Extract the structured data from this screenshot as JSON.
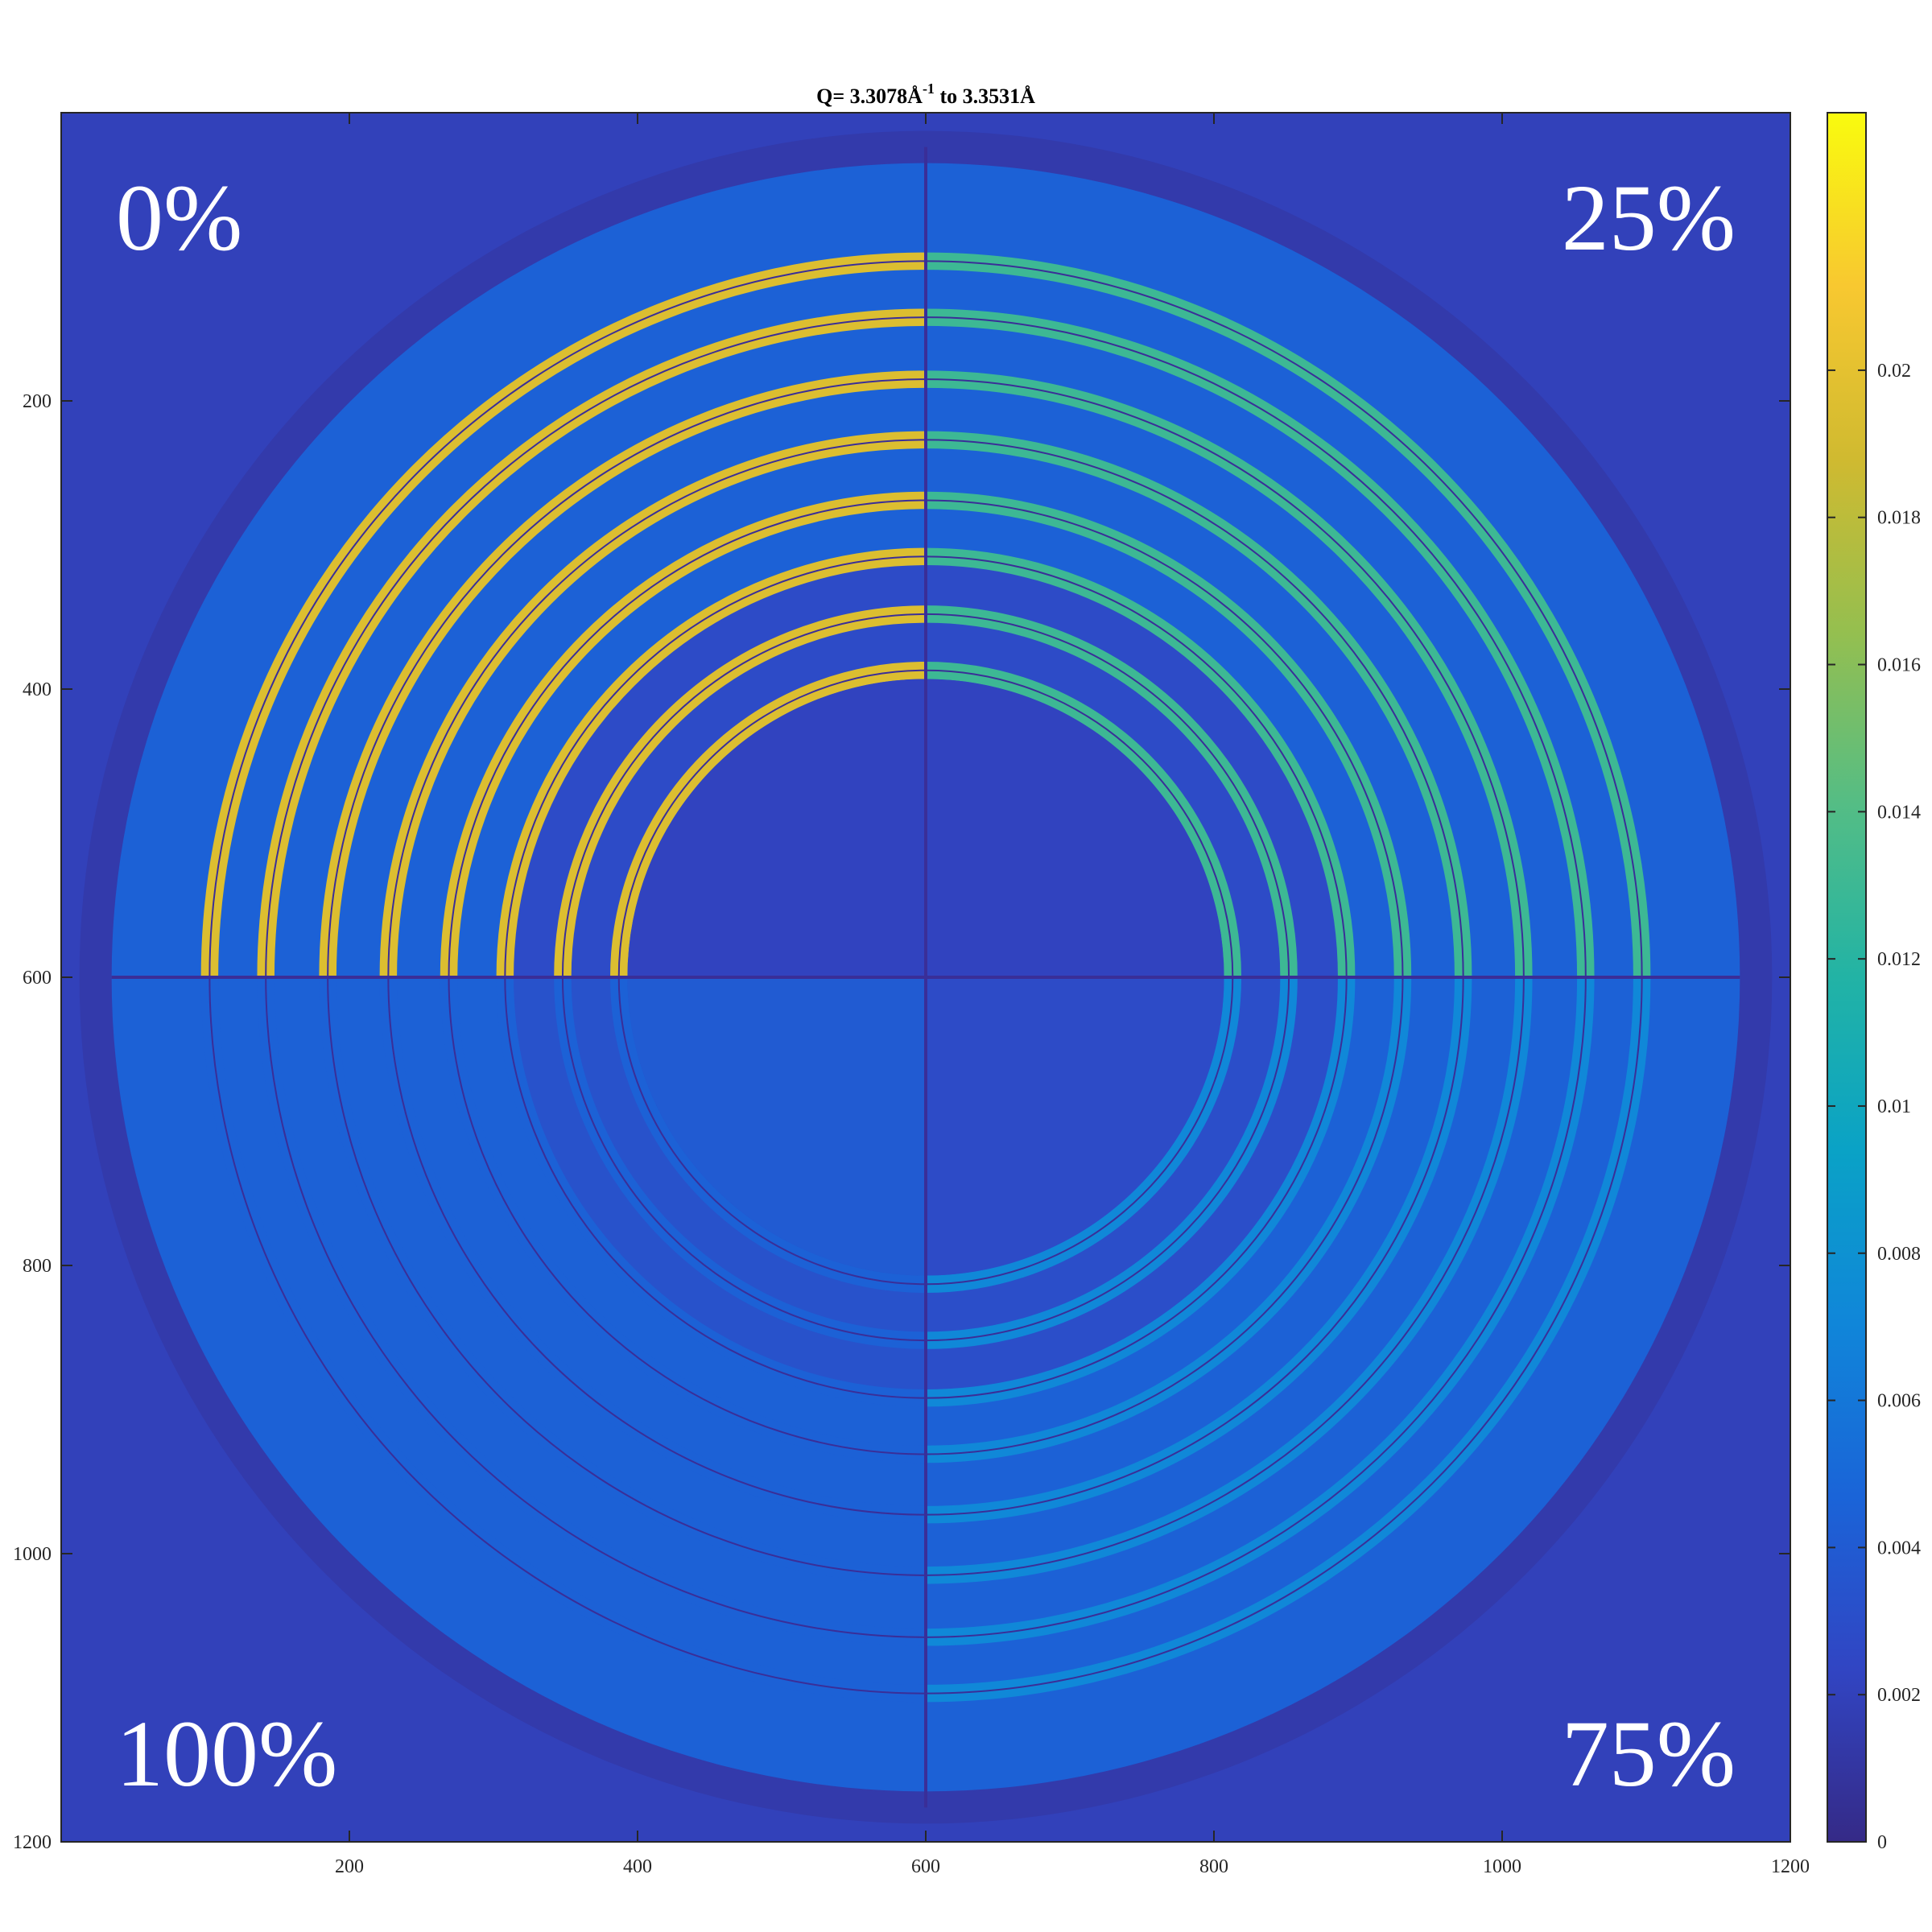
{
  "chart_data": {
    "type": "heatmap",
    "title": {
      "main": "Q= 3.3078Å",
      "superscript": "-1",
      "suffix": "  to 3.3531Å"
    },
    "xlim": [
      0,
      1200
    ],
    "ylim": [
      1200,
      0
    ],
    "x_ticks": [
      200,
      400,
      600,
      800,
      1000,
      1200
    ],
    "y_ticks": [
      200,
      400,
      600,
      800,
      1000,
      1200
    ],
    "x_tick_labels": [
      "200",
      "400",
      "600",
      "800",
      "1000",
      "1200"
    ],
    "y_tick_labels": [
      "200",
      "400",
      "600",
      "800",
      "1000",
      "1200"
    ],
    "colorbar": {
      "min": 0,
      "max": 0.0235,
      "ticks": [
        0,
        0.002,
        0.004,
        0.006,
        0.008,
        0.01,
        0.012,
        0.014,
        0.016,
        0.018,
        0.02
      ],
      "tick_labels": [
        "0",
        "0.002",
        "0.004",
        "0.006",
        "0.008",
        "0.01",
        "0.012",
        "0.014",
        "0.016",
        "0.018",
        "0.02"
      ],
      "colormap": "parula"
    },
    "quadrant_labels": [
      {
        "text": "0%",
        "position": "top-left"
      },
      {
        "text": "25%",
        "position": "top-right"
      },
      {
        "text": "100%",
        "position": "bottom-left"
      },
      {
        "text": "75%",
        "position": "bottom-right"
      }
    ],
    "center": [
      600,
      600
    ],
    "outer_disk_radius": 565,
    "quadrants": {
      "top_left": {
        "ring_value": 0.0195,
        "gap_value": 0.0028,
        "fill_value": 0.0022
      },
      "top_right": {
        "ring_value": 0.013,
        "gap_value": 0.0028,
        "fill_value": 0.0022
      },
      "bottom_left": {
        "ring_value": 0.0045,
        "gap_value": 0.0033,
        "fill_value": 0.004
      },
      "bottom_right": {
        "ring_value": 0.0072,
        "gap_value": 0.003,
        "fill_value": 0.0028
      }
    },
    "ring_radii": [
      497,
      458,
      415,
      373,
      331,
      292,
      252,
      213
    ],
    "background_value": 0.002,
    "disk_value": 0.0045
  },
  "colors": {
    "parula": [
      "#352A87",
      "#3145C3",
      "#1A64D8",
      "#1086D9",
      "#0AA2C6",
      "#22B3A5",
      "#54BD85",
      "#95BF4F",
      "#D0BA30",
      "#F8C830",
      "#F9FB0E"
    ],
    "separator": "#3A2E98"
  }
}
